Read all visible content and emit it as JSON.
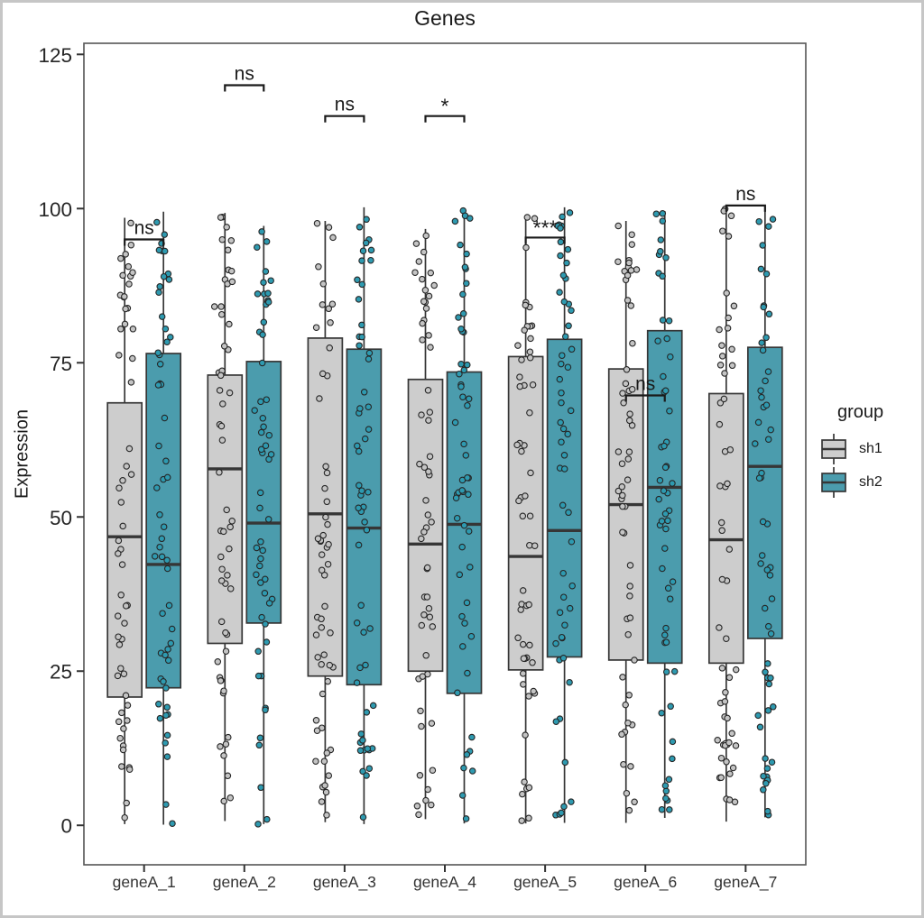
{
  "window": {
    "border_color": "#c6c6c6",
    "background": "#ffffff"
  },
  "chart_data": {
    "type": "boxplot",
    "title": "Genes",
    "xlabel": "",
    "ylabel": "Expression",
    "y_ticks": [
      0,
      25,
      50,
      75,
      100,
      125
    ],
    "ylim": [
      -6.4,
      126.8
    ],
    "grid": false,
    "categories": [
      "geneA_1",
      "geneA_2",
      "geneA_3",
      "geneA_4",
      "geneA_5",
      "geneA_6",
      "geneA_7"
    ],
    "legend": {
      "title": "group",
      "position": "right"
    },
    "groups": [
      {
        "name": "sh1",
        "box_fill": "#cdcdcd",
        "point_fill": "#c4c4c4"
      },
      {
        "name": "sh2",
        "box_fill": "#4b9cad",
        "point_fill": "#2e9ab0"
      }
    ],
    "boxes": [
      {
        "gene": "geneA_1",
        "group": "sh1",
        "median": 46.8,
        "q1": 20.8,
        "q3": 68.5,
        "whisker_low": 0.2,
        "whisker_high": 98.5,
        "n_points": 56
      },
      {
        "gene": "geneA_1",
        "group": "sh2",
        "median": 42.3,
        "q1": 22.3,
        "q3": 76.5,
        "whisker_low": 0.1,
        "whisker_high": 99.5,
        "n_points": 56
      },
      {
        "gene": "geneA_2",
        "group": "sh1",
        "median": 57.8,
        "q1": 29.5,
        "q3": 73.0,
        "whisker_low": 0.7,
        "whisker_high": 99.3,
        "n_points": 56
      },
      {
        "gene": "geneA_2",
        "group": "sh2",
        "median": 49.0,
        "q1": 32.8,
        "q3": 75.2,
        "whisker_low": 0.2,
        "whisker_high": 97.2,
        "n_points": 56
      },
      {
        "gene": "geneA_3",
        "group": "sh1",
        "median": 50.5,
        "q1": 24.2,
        "q3": 79.0,
        "whisker_low": 0.5,
        "whisker_high": 98.0,
        "n_points": 56
      },
      {
        "gene": "geneA_3",
        "group": "sh2",
        "median": 48.2,
        "q1": 22.8,
        "q3": 77.2,
        "whisker_low": 0.2,
        "whisker_high": 100.2,
        "n_points": 56
      },
      {
        "gene": "geneA_4",
        "group": "sh1",
        "median": 45.6,
        "q1": 25.0,
        "q3": 72.3,
        "whisker_low": 1.0,
        "whisker_high": 96.7,
        "n_points": 56
      },
      {
        "gene": "geneA_4",
        "group": "sh2",
        "median": 48.8,
        "q1": 21.4,
        "q3": 73.5,
        "whisker_low": 0.3,
        "whisker_high": 100.0,
        "n_points": 56
      },
      {
        "gene": "geneA_5",
        "group": "sh1",
        "median": 43.6,
        "q1": 25.2,
        "q3": 76.0,
        "whisker_low": 0.3,
        "whisker_high": 98.8,
        "n_points": 56
      },
      {
        "gene": "geneA_5",
        "group": "sh2",
        "median": 47.8,
        "q1": 27.3,
        "q3": 78.8,
        "whisker_low": 0.4,
        "whisker_high": 100.2,
        "n_points": 56
      },
      {
        "gene": "geneA_6",
        "group": "sh1",
        "median": 52.0,
        "q1": 26.8,
        "q3": 74.0,
        "whisker_low": 0.4,
        "whisker_high": 98.0,
        "n_points": 56
      },
      {
        "gene": "geneA_6",
        "group": "sh2",
        "median": 54.8,
        "q1": 26.3,
        "q3": 80.2,
        "whisker_low": 1.2,
        "whisker_high": 99.6,
        "n_points": 56
      },
      {
        "gene": "geneA_7",
        "group": "sh1",
        "median": 46.3,
        "q1": 26.3,
        "q3": 70.0,
        "whisker_low": 0.6,
        "whisker_high": 100.2,
        "n_points": 56
      },
      {
        "gene": "geneA_7",
        "group": "sh2",
        "median": 58.2,
        "q1": 30.3,
        "q3": 77.5,
        "whisker_low": 1.3,
        "whisker_high": 100.4,
        "n_points": 56
      }
    ],
    "annotations": [
      {
        "gene": "geneA_1",
        "label": "ns",
        "y": 95.0
      },
      {
        "gene": "geneA_2",
        "label": "ns",
        "y": 120.0
      },
      {
        "gene": "geneA_3",
        "label": "ns",
        "y": 115.0
      },
      {
        "gene": "geneA_4",
        "label": "*",
        "y": 115.0
      },
      {
        "gene": "geneA_5",
        "label": "***",
        "y": 95.3
      },
      {
        "gene": "geneA_6",
        "label": "ns",
        "y": 69.7
      },
      {
        "gene": "geneA_7",
        "label": "ns",
        "y": 100.5
      }
    ],
    "style": {
      "box_stroke": "#363636",
      "median_stroke": "#363636",
      "point_stroke": "#262626",
      "panel_border": "#555555",
      "tick_color": "#333333",
      "tick_text_color": "#262626",
      "x_text_color": "#333333",
      "bracket_color": "#1a1a1a",
      "title_color": "#1a1a1a"
    }
  }
}
